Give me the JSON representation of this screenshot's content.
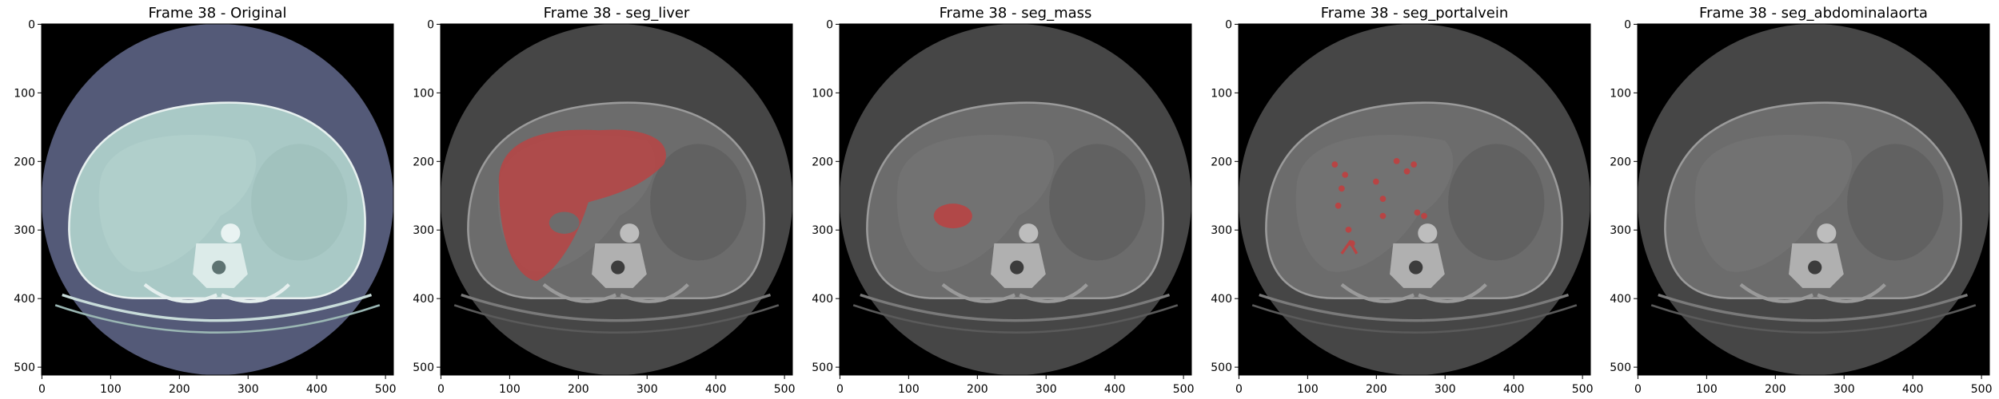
{
  "panels": [
    {
      "title": "Frame 38 - Original",
      "mode": "original"
    },
    {
      "title": "Frame 38 - seg_liver",
      "mode": "liver"
    },
    {
      "title": "Frame 38 - seg_mass",
      "mode": "mass"
    },
    {
      "title": "Frame 38 - seg_portalvein",
      "mode": "portalvein"
    },
    {
      "title": "Frame 38 - seg_abdominalaorta",
      "mode": "aorta"
    }
  ],
  "axes": {
    "xticks": [
      "0",
      "100",
      "200",
      "300",
      "400",
      "500"
    ],
    "yticks": [
      "0",
      "100",
      "200",
      "300",
      "400",
      "500"
    ]
  },
  "colors": {
    "original_bg": "#545a78",
    "original_tissue": "#a9c9c6",
    "gray_bg": "#464646",
    "gray_tissue": "#6c6c6c",
    "overlay": "#b84444"
  }
}
